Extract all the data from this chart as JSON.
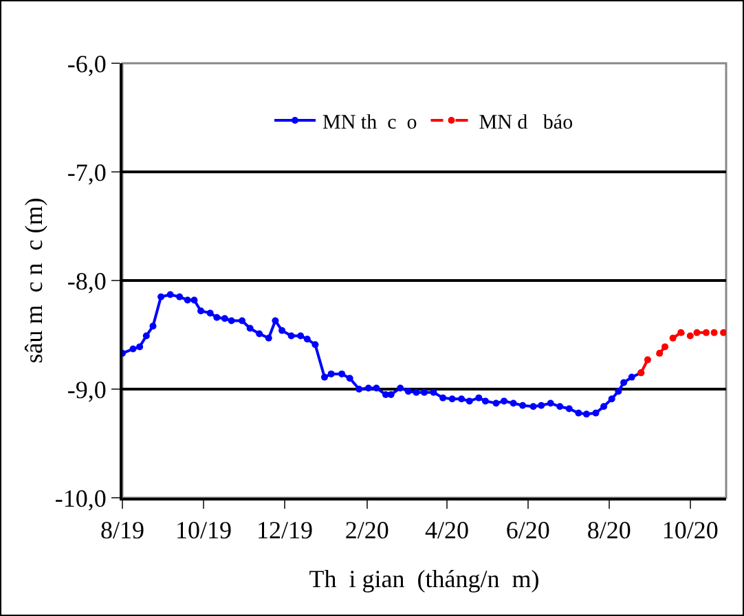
{
  "chart_data": {
    "type": "line",
    "xlabel": "Th  i gian  (tháng/n  m)",
    "ylabel": "sâu m  c n  c (m)",
    "xlim": [
      "2019-08-01",
      "2020-10-28"
    ],
    "xticks": [
      {
        "value": "2019-08-01",
        "label": "8/19"
      },
      {
        "value": "2019-10-01",
        "label": "10/19"
      },
      {
        "value": "2019-12-01",
        "label": "12/19"
      },
      {
        "value": "2020-02-01",
        "label": "2/20"
      },
      {
        "value": "2020-04-01",
        "label": "4/20"
      },
      {
        "value": "2020-06-01",
        "label": "6/20"
      },
      {
        "value": "2020-08-01",
        "label": "8/20"
      },
      {
        "value": "2020-10-01",
        "label": "10/20"
      }
    ],
    "ylim": [
      -10,
      -6
    ],
    "yticks": [
      {
        "value": -10,
        "label": "-10,0"
      },
      {
        "value": -9,
        "label": "-9,0"
      },
      {
        "value": -8,
        "label": "-8,0"
      },
      {
        "value": -7,
        "label": "-7,0"
      },
      {
        "value": -6,
        "label": "-6,0"
      }
    ],
    "grid": "y",
    "legend": "top",
    "marker": "circle",
    "series": [
      {
        "name": "MN th  c  o",
        "color": "#0000ff",
        "line_style": "solid",
        "x": [
          "2019-08-01",
          "2019-08-09",
          "2019-08-14",
          "2019-08-19",
          "2019-08-24",
          "2019-08-30",
          "2019-09-06",
          "2019-09-13",
          "2019-09-19",
          "2019-09-24",
          "2019-09-29",
          "2019-10-06",
          "2019-10-11",
          "2019-10-17",
          "2019-10-22",
          "2019-10-30",
          "2019-11-05",
          "2019-11-12",
          "2019-11-19",
          "2019-11-24",
          "2019-11-29",
          "2019-12-06",
          "2019-12-13",
          "2019-12-18",
          "2019-12-24",
          "2019-12-31",
          "2020-01-05",
          "2020-01-13",
          "2020-01-19",
          "2020-01-26",
          "2020-02-02",
          "2020-02-08",
          "2020-02-15",
          "2020-02-19",
          "2020-02-26",
          "2020-03-03",
          "2020-03-09",
          "2020-03-15",
          "2020-03-22",
          "2020-03-29",
          "2020-04-05",
          "2020-04-12",
          "2020-04-18",
          "2020-04-25",
          "2020-04-30",
          "2020-05-08",
          "2020-05-14",
          "2020-05-21",
          "2020-05-28",
          "2020-06-05",
          "2020-06-11",
          "2020-06-18",
          "2020-06-25",
          "2020-07-02",
          "2020-07-09",
          "2020-07-15",
          "2020-07-22",
          "2020-07-28",
          "2020-08-03",
          "2020-08-08",
          "2020-08-12",
          "2020-08-18",
          "2020-08-25"
        ],
        "values": [
          -8.67,
          -8.63,
          -8.61,
          -8.51,
          -8.42,
          -8.15,
          -8.13,
          -8.15,
          -8.18,
          -8.18,
          -8.28,
          -8.3,
          -8.34,
          -8.35,
          -8.37,
          -8.37,
          -8.44,
          -8.49,
          -8.53,
          -8.37,
          -8.46,
          -8.51,
          -8.51,
          -8.54,
          -8.59,
          -8.89,
          -8.86,
          -8.86,
          -8.9,
          -9.0,
          -8.99,
          -8.99,
          -9.05,
          -9.05,
          -8.99,
          -9.02,
          -9.03,
          -9.03,
          -9.03,
          -9.08,
          -9.09,
          -9.09,
          -9.11,
          -9.08,
          -9.11,
          -9.13,
          -9.11,
          -9.13,
          -9.15,
          -9.16,
          -9.15,
          -9.13,
          -9.16,
          -9.18,
          -9.22,
          -9.23,
          -9.22,
          -9.16,
          -9.09,
          -9.02,
          -8.94,
          -8.89,
          -8.85
        ]
      },
      {
        "name": "MN d   báo",
        "color": "#ff0000",
        "line_style": "dashed",
        "x": [
          "2020-08-25",
          "2020-08-30",
          "2020-09-08",
          "2020-09-12",
          "2020-09-18",
          "2020-09-24",
          "2020-10-01",
          "2020-10-06",
          "2020-10-13",
          "2020-10-19",
          "2020-10-26"
        ],
        "values": [
          -8.85,
          -8.73,
          -8.67,
          -8.61,
          -8.53,
          -8.48,
          -8.51,
          -8.48,
          -8.48,
          -8.48,
          -8.48
        ]
      }
    ]
  }
}
